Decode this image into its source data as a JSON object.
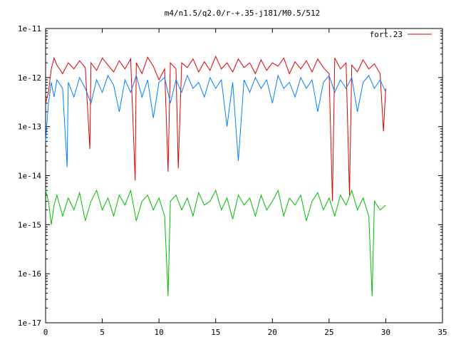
{
  "chart_data": {
    "type": "line",
    "title": "m4/n1.5/q2.0/r-+.35-j181/M0.5/512",
    "xlabel": "",
    "ylabel": "",
    "xlim": [
      0,
      35
    ],
    "ylim": [
      1e-17,
      1e-11
    ],
    "y_scale": "log",
    "x_ticks": [
      0,
      5,
      10,
      15,
      20,
      25,
      30,
      35
    ],
    "x_tick_labels": [
      "0",
      "5",
      "10",
      "15",
      "20",
      "25",
      "30",
      "35"
    ],
    "y_ticks": [
      1e-17,
      1e-16,
      1e-15,
      1e-14,
      1e-13,
      1e-12,
      1e-11
    ],
    "y_tick_labels": [
      "1e-17",
      "1e-16",
      "1e-15",
      "1e-14",
      "1e-13",
      "1e-12",
      "1e-11"
    ],
    "grid": false,
    "legend_position": "top-right",
    "series": [
      {
        "name": "fort.23",
        "color": "#dd0000",
        "x": [
          0,
          0.25,
          0.5,
          0.75,
          1,
          1.5,
          2,
          2.5,
          3,
          3.5,
          3.9,
          4,
          4.5,
          5,
          5.5,
          6,
          6.5,
          7,
          7.5,
          7.9,
          8,
          8.5,
          9,
          9.5,
          10,
          10.5,
          10.8,
          11,
          11.5,
          11.7,
          12,
          12.5,
          13,
          13.5,
          14,
          14.5,
          15,
          15.5,
          16,
          16.5,
          17,
          17.5,
          18,
          18.5,
          19,
          19.5,
          20,
          20.5,
          21,
          21.5,
          22,
          22.5,
          23,
          23.5,
          24,
          24.5,
          25,
          25.3,
          25.5,
          26,
          26.5,
          26.8,
          27,
          27.5,
          28,
          28.5,
          29,
          29.5,
          29.8,
          30
        ],
        "values": [
          3e-13,
          5e-13,
          1.5e-12,
          2.5e-12,
          1.8e-12,
          1.2e-12,
          2e-12,
          1.5e-12,
          2.2e-12,
          1.6e-12,
          3.5e-14,
          2e-12,
          1.4e-12,
          2.5e-12,
          1.8e-12,
          1.3e-12,
          2.2e-12,
          1.5e-12,
          2.4e-12,
          8e-15,
          2e-12,
          1.2e-12,
          2.6e-12,
          1.7e-12,
          9e-13,
          1.5e-12,
          1.2e-14,
          2e-12,
          1.5e-12,
          1.4e-14,
          2e-12,
          1.6e-12,
          2.4e-12,
          1.3e-12,
          2.1e-12,
          1.4e-12,
          2.7e-12,
          1.5e-12,
          2e-12,
          1.3e-12,
          2.4e-12,
          1.6e-12,
          2e-12,
          1.2e-12,
          2.3e-12,
          1.4e-12,
          2e-12,
          1.7e-12,
          2.5e-12,
          1.2e-12,
          2.1e-12,
          1.5e-12,
          2.2e-12,
          1.3e-12,
          2.4e-12,
          1.6e-12,
          1.2e-12,
          3e-15,
          2.5e-12,
          1.5e-12,
          2e-12,
          4e-15,
          1.8e-12,
          1.3e-12,
          2.3e-12,
          1.5e-12,
          1.9e-12,
          1.2e-12,
          8e-14,
          6e-13
        ]
      },
      {
        "color": "#0080ff",
        "x": [
          0,
          0.25,
          0.5,
          0.75,
          1,
          1.5,
          1.9,
          2,
          2.5,
          3,
          3.5,
          4,
          4.5,
          5,
          5.5,
          6,
          6.5,
          7,
          7.5,
          8,
          8.5,
          9,
          9.5,
          10,
          10.5,
          11,
          11.5,
          12,
          12.5,
          13,
          13.5,
          14,
          14.5,
          15,
          15.5,
          16,
          16.5,
          17,
          17.5,
          18,
          18.5,
          19,
          19.5,
          20,
          20.5,
          21,
          21.5,
          22,
          22.5,
          23,
          23.5,
          24,
          24.5,
          25,
          25.5,
          26,
          26.5,
          27,
          27.5,
          28,
          28.5,
          29,
          29.5,
          30
        ],
        "values": [
          5e-14,
          3e-13,
          8e-13,
          4e-13,
          9e-13,
          6e-13,
          1.5e-14,
          8e-13,
          4e-13,
          1e-12,
          6e-13,
          3e-13,
          9e-13,
          5e-13,
          1.1e-12,
          7e-13,
          2e-13,
          9e-13,
          5e-13,
          1.1e-12,
          4e-13,
          9e-13,
          1.5e-13,
          8e-13,
          1e-12,
          3e-13,
          9e-13,
          5e-13,
          1.1e-12,
          6e-13,
          8e-13,
          4e-13,
          1e-12,
          6e-13,
          9e-13,
          1e-13,
          8e-13,
          2e-14,
          9e-13,
          5e-13,
          1e-12,
          6e-13,
          9e-13,
          3e-13,
          1.1e-12,
          6e-13,
          8e-13,
          4e-13,
          1e-12,
          6e-13,
          9e-13,
          2e-13,
          8e-13,
          1.1e-12,
          5e-13,
          9e-13,
          6e-13,
          1e-12,
          2e-13,
          8e-13,
          1.1e-12,
          6e-13,
          9e-13,
          5e-13
        ]
      },
      {
        "color": "#00bb00",
        "x": [
          0,
          0.25,
          0.5,
          0.75,
          1,
          1.5,
          2,
          2.5,
          3,
          3.5,
          4,
          4.5,
          5,
          5.5,
          6,
          6.5,
          7,
          7.5,
          8,
          8.5,
          9,
          9.5,
          10,
          10.5,
          10.8,
          11,
          11.5,
          12,
          12.5,
          13,
          13.5,
          14,
          14.5,
          15,
          15.5,
          16,
          16.5,
          17,
          17.5,
          18,
          18.5,
          19,
          19.5,
          20,
          20.5,
          21,
          21.5,
          22,
          22.5,
          23,
          23.5,
          24,
          24.5,
          25,
          25.5,
          26,
          26.5,
          27,
          27.5,
          28,
          28.5,
          28.8,
          29,
          29.5,
          30
        ],
        "values": [
          5e-15,
          3e-15,
          1e-15,
          2.5e-15,
          4e-15,
          1.5e-15,
          3.5e-15,
          2e-15,
          4.5e-15,
          1.2e-15,
          3e-15,
          5e-15,
          2e-15,
          3.5e-15,
          1.5e-15,
          4e-15,
          2.5e-15,
          5e-15,
          1.2e-15,
          3e-15,
          4e-15,
          2e-15,
          3.5e-15,
          1.5e-15,
          3.5e-17,
          3e-15,
          4e-15,
          2e-15,
          3.5e-15,
          1.5e-15,
          4.5e-15,
          2.5e-15,
          3e-15,
          5e-15,
          2e-15,
          3.5e-15,
          1.3e-15,
          4e-15,
          2.5e-15,
          3.5e-15,
          1.5e-15,
          4e-15,
          2e-15,
          3e-15,
          5e-15,
          1.5e-15,
          3.5e-15,
          2.5e-15,
          4e-15,
          1.2e-15,
          3e-15,
          4.5e-15,
          2e-15,
          3.5e-15,
          1.5e-15,
          4e-15,
          2.5e-15,
          5e-15,
          2e-15,
          3.5e-15,
          1.5e-15,
          3.5e-17,
          3e-15,
          2e-15,
          2.5e-15
        ]
      }
    ]
  }
}
